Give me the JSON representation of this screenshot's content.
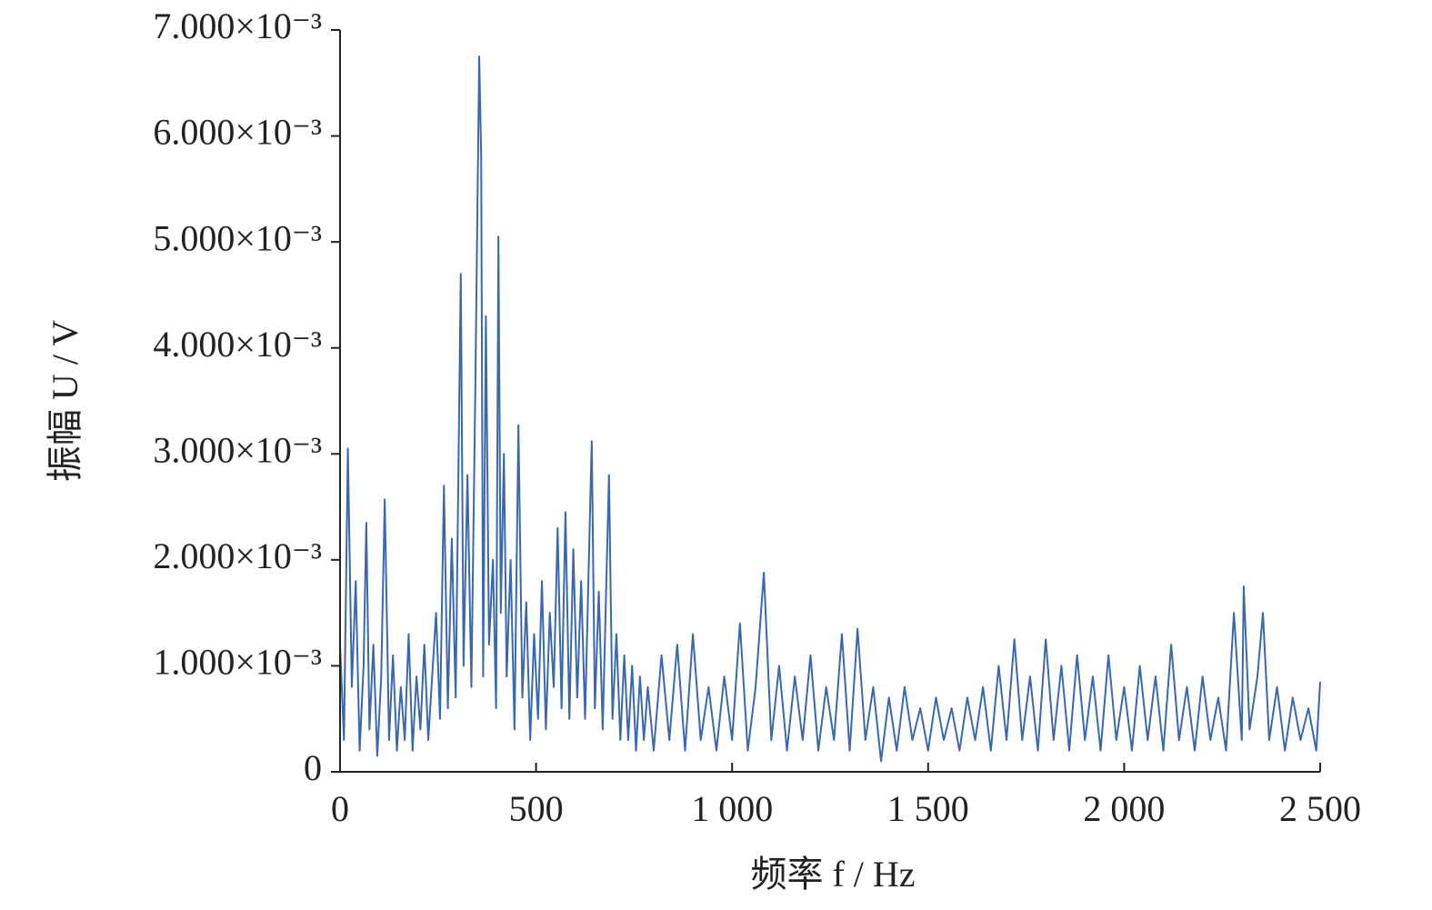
{
  "chart_data": {
    "type": "line",
    "x_label": "频率 f / Hz",
    "y_label": "振幅 U / V",
    "xlim": [
      0,
      2500
    ],
    "xticks": [
      0,
      500,
      {
        "value": 1000,
        "label": "1 000"
      },
      {
        "value": 1500,
        "label": "1 500"
      },
      {
        "value": 2000,
        "label": "2 000"
      },
      {
        "value": 2500,
        "label": "2 500"
      }
    ],
    "ylim": [
      0,
      0.007
    ],
    "yticks": [
      0,
      {
        "value": 0.001,
        "label": "1.000×10⁻³"
      },
      {
        "value": 0.002,
        "label": "2.000×10⁻³"
      },
      {
        "value": 0.003,
        "label": "3.000×10⁻³"
      },
      {
        "value": 0.004,
        "label": "4.000×10⁻³"
      },
      {
        "value": 0.005,
        "label": "5.000×10⁻³"
      },
      {
        "value": 0.006,
        "label": "6.000×10⁻³"
      },
      {
        "value": 0.007,
        "label": "7.000×10⁻³"
      }
    ],
    "series": [
      {
        "color": "#3a68ad",
        "x": [
          0,
          10,
          20,
          30,
          40,
          50,
          60,
          67,
          75,
          85,
          95,
          105,
          114,
          125,
          135,
          145,
          155,
          165,
          175,
          185,
          195,
          205,
          215,
          225,
          235,
          245,
          255,
          265,
          275,
          285,
          295,
          308,
          315,
          325,
          335,
          345,
          355,
          360,
          365,
          372,
          380,
          390,
          398,
          404,
          410,
          418,
          425,
          435,
          445,
          455,
          465,
          475,
          485,
          495,
          505,
          515,
          525,
          535,
          545,
          555,
          565,
          575,
          585,
          595,
          605,
          615,
          625,
          642,
          650,
          660,
          670,
          686,
          695,
          705,
          715,
          725,
          735,
          745,
          755,
          765,
          775,
          785,
          800,
          820,
          840,
          860,
          880,
          900,
          920,
          940,
          960,
          980,
          1000,
          1020,
          1040,
          1060,
          1081,
          1100,
          1120,
          1140,
          1160,
          1180,
          1200,
          1220,
          1240,
          1260,
          1280,
          1300,
          1320,
          1340,
          1360,
          1380,
          1400,
          1420,
          1440,
          1460,
          1480,
          1500,
          1520,
          1540,
          1560,
          1580,
          1600,
          1620,
          1640,
          1660,
          1680,
          1700,
          1720,
          1740,
          1760,
          1780,
          1800,
          1820,
          1840,
          1860,
          1880,
          1900,
          1920,
          1940,
          1960,
          1980,
          2000,
          2020,
          2040,
          2060,
          2080,
          2100,
          2120,
          2140,
          2160,
          2180,
          2200,
          2220,
          2240,
          2260,
          2280,
          2300,
          2305,
          2320,
          2340,
          2354,
          2370,
          2390,
          2410,
          2430,
          2450,
          2470,
          2490,
          2500
        ],
        "values": [
          0.0012,
          0.0003,
          0.00305,
          0.0008,
          0.0018,
          0.0002,
          0.001,
          0.00235,
          0.0004,
          0.0012,
          0.00015,
          0.0009,
          0.00257,
          0.0003,
          0.0011,
          0.0002,
          0.0008,
          0.0003,
          0.0013,
          0.0002,
          0.0009,
          0.0004,
          0.0012,
          0.0003,
          0.0009,
          0.0015,
          0.0005,
          0.0027,
          0.0006,
          0.0022,
          0.0007,
          0.0047,
          0.001,
          0.0028,
          0.0008,
          0.0036,
          0.00675,
          0.0058,
          0.0009,
          0.0043,
          0.0012,
          0.002,
          0.0006,
          0.00505,
          0.0015,
          0.003,
          0.0009,
          0.002,
          0.0004,
          0.00327,
          0.0007,
          0.0016,
          0.0003,
          0.0013,
          0.0005,
          0.0018,
          0.0004,
          0.0015,
          0.0008,
          0.0023,
          0.0006,
          0.00245,
          0.0005,
          0.0021,
          0.0007,
          0.0018,
          0.0005,
          0.00312,
          0.0006,
          0.0017,
          0.0004,
          0.0028,
          0.0005,
          0.0013,
          0.0003,
          0.0011,
          0.0003,
          0.001,
          0.0002,
          0.0009,
          0.0003,
          0.0008,
          0.0002,
          0.0011,
          0.0003,
          0.0012,
          0.0002,
          0.0013,
          0.0003,
          0.0008,
          0.0002,
          0.0009,
          0.0003,
          0.0014,
          0.0002,
          0.0008,
          0.00188,
          0.0003,
          0.001,
          0.0002,
          0.0009,
          0.0003,
          0.0011,
          0.0002,
          0.0008,
          0.0003,
          0.0013,
          0.0002,
          0.00135,
          0.0003,
          0.0008,
          0.0001,
          0.0007,
          0.0002,
          0.0008,
          0.0003,
          0.0006,
          0.0002,
          0.0007,
          0.0003,
          0.0006,
          0.0002,
          0.0007,
          0.0003,
          0.0008,
          0.0002,
          0.001,
          0.0003,
          0.00125,
          0.0003,
          0.0009,
          0.0002,
          0.00125,
          0.0003,
          0.001,
          0.0002,
          0.0011,
          0.0003,
          0.0009,
          0.0002,
          0.0011,
          0.0003,
          0.0008,
          0.0002,
          0.001,
          0.0003,
          0.0009,
          0.0002,
          0.0012,
          0.0003,
          0.0008,
          0.0002,
          0.0009,
          0.0003,
          0.0007,
          0.0002,
          0.0015,
          0.0003,
          0.00175,
          0.0004,
          0.0009,
          0.0015,
          0.0003,
          0.0008,
          0.0002,
          0.0007,
          0.0003,
          0.0006,
          0.0002,
          0.00085
        ]
      }
    ]
  }
}
